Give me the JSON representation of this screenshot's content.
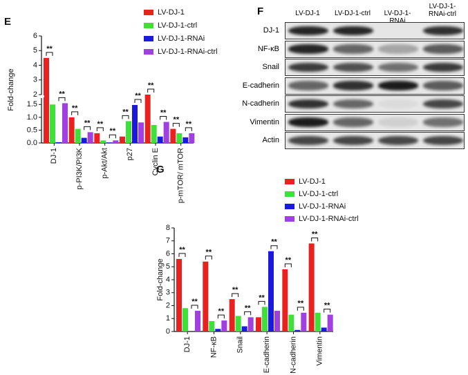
{
  "chart_data": [
    {
      "type": "bar",
      "panel": "E",
      "ylabel": "Fold-change",
      "categories": [
        "DJ-1",
        "p-PI3K/PI3K",
        "p-Akt/Akt",
        "p27",
        "Cyclin E",
        "p-mTOR/ mTOR"
      ],
      "series": [
        {
          "name": "LV-DJ-1",
          "color": "#e8231f",
          "values": [
            4.5,
            1.0,
            0.38,
            0.25,
            2.0,
            0.55
          ]
        },
        {
          "name": "LV-DJ-1-ctrl",
          "color": "#3fe03a",
          "values": [
            1.5,
            0.55,
            0.1,
            0.85,
            0.7,
            0.38
          ]
        },
        {
          "name": "LV-DJ-1-RNAi",
          "color": "#1a1adc",
          "values": [
            0.03,
            0.2,
            0.02,
            1.48,
            0.25,
            0.22
          ]
        },
        {
          "name": "LV-DJ-1-RNAi-ctrl",
          "color": "#a040e0",
          "values": [
            1.55,
            0.42,
            0.1,
            0.8,
            0.82,
            0.38
          ]
        }
      ],
      "ysegments": [
        {
          "ylim": [
            0,
            1.75
          ],
          "yticks": [
            {
              "value": 0,
              "label": "0.0"
            },
            0.5,
            {
              "value": 1,
              "label": "1.0"
            },
            1.5
          ]
        },
        {
          "ylim": [
            2,
            6
          ],
          "yticks": [
            2,
            3,
            4,
            5,
            6
          ]
        }
      ],
      "annotations": [
        {
          "text": "**",
          "category": 0,
          "series": [
            0,
            1
          ]
        },
        {
          "text": "**",
          "category": 0,
          "series": [
            2,
            3
          ]
        },
        {
          "text": "**",
          "category": 1,
          "series": [
            0,
            1
          ]
        },
        {
          "text": "**",
          "category": 1,
          "series": [
            2,
            3
          ]
        },
        {
          "text": "**",
          "category": 2,
          "series": [
            0,
            1
          ]
        },
        {
          "text": "**",
          "category": 2,
          "series": [
            2,
            3
          ]
        },
        {
          "text": "**",
          "category": 3,
          "series": [
            0,
            1
          ]
        },
        {
          "text": "**",
          "category": 3,
          "series": [
            2,
            3
          ]
        },
        {
          "text": "**",
          "category": 4,
          "series": [
            0,
            1
          ]
        },
        {
          "text": "**",
          "category": 4,
          "series": [
            2,
            3
          ]
        },
        {
          "text": "**",
          "category": 5,
          "series": [
            0,
            1
          ]
        },
        {
          "text": "**",
          "category": 5,
          "series": [
            2,
            3
          ]
        }
      ]
    },
    {
      "type": "bar",
      "panel": "G",
      "ylabel": "Fold-change",
      "categories": [
        "DJ-1",
        "NF-κB",
        "Snail",
        "E-cadherin",
        "N-cadherin",
        "Vimentin"
      ],
      "series": [
        {
          "name": "LV-DJ-1",
          "color": "#e8231f",
          "values": [
            5.6,
            5.4,
            2.5,
            1.1,
            4.8,
            6.8
          ]
        },
        {
          "name": "LV-DJ-1-ctrl",
          "color": "#3fe03a",
          "values": [
            1.8,
            0.8,
            1.2,
            1.9,
            1.3,
            1.45
          ]
        },
        {
          "name": "LV-DJ-1-RNAi",
          "color": "#1a1adc",
          "values": [
            0,
            0.2,
            0.4,
            6.2,
            0.12,
            0.3
          ]
        },
        {
          "name": "LV-DJ-1-RNAi-ctrl",
          "color": "#a040e0",
          "values": [
            1.6,
            0.85,
            1.1,
            1.6,
            1.45,
            1.3
          ]
        }
      ],
      "ysegments": [
        {
          "ylim": [
            0,
            8
          ],
          "yticks": [
            0,
            1,
            2,
            3,
            4,
            5,
            6,
            7,
            8
          ]
        }
      ],
      "annotations": [
        {
          "text": "**",
          "category": 0,
          "series": [
            0,
            1
          ]
        },
        {
          "text": "**",
          "category": 0,
          "series": [
            2,
            3
          ]
        },
        {
          "text": "**",
          "category": 1,
          "series": [
            0,
            1
          ]
        },
        {
          "text": "**",
          "category": 1,
          "series": [
            2,
            3
          ]
        },
        {
          "text": "**",
          "category": 2,
          "series": [
            0,
            1
          ]
        },
        {
          "text": "**",
          "category": 2,
          "series": [
            2,
            3
          ]
        },
        {
          "text": "**",
          "category": 3,
          "series": [
            0,
            1
          ]
        },
        {
          "text": "**",
          "category": 3,
          "series": [
            2,
            3
          ]
        },
        {
          "text": "**",
          "category": 4,
          "series": [
            0,
            1
          ]
        },
        {
          "text": "**",
          "category": 4,
          "series": [
            2,
            3
          ]
        },
        {
          "text": "**",
          "category": 5,
          "series": [
            0,
            1
          ]
        },
        {
          "text": "**",
          "category": 5,
          "series": [
            2,
            3
          ]
        }
      ]
    }
  ],
  "blot": {
    "panel": "F",
    "columns": [
      "LV-DJ-1",
      "LV-DJ-1-ctrl",
      "LV-DJ-1-RNAi",
      "LV-DJ-1-RNAi-ctrl"
    ],
    "rows": [
      "DJ-1",
      "NF-κB",
      "Snail",
      "E-cadherin",
      "N-cadherin",
      "Vimentin",
      "Actin"
    ]
  }
}
